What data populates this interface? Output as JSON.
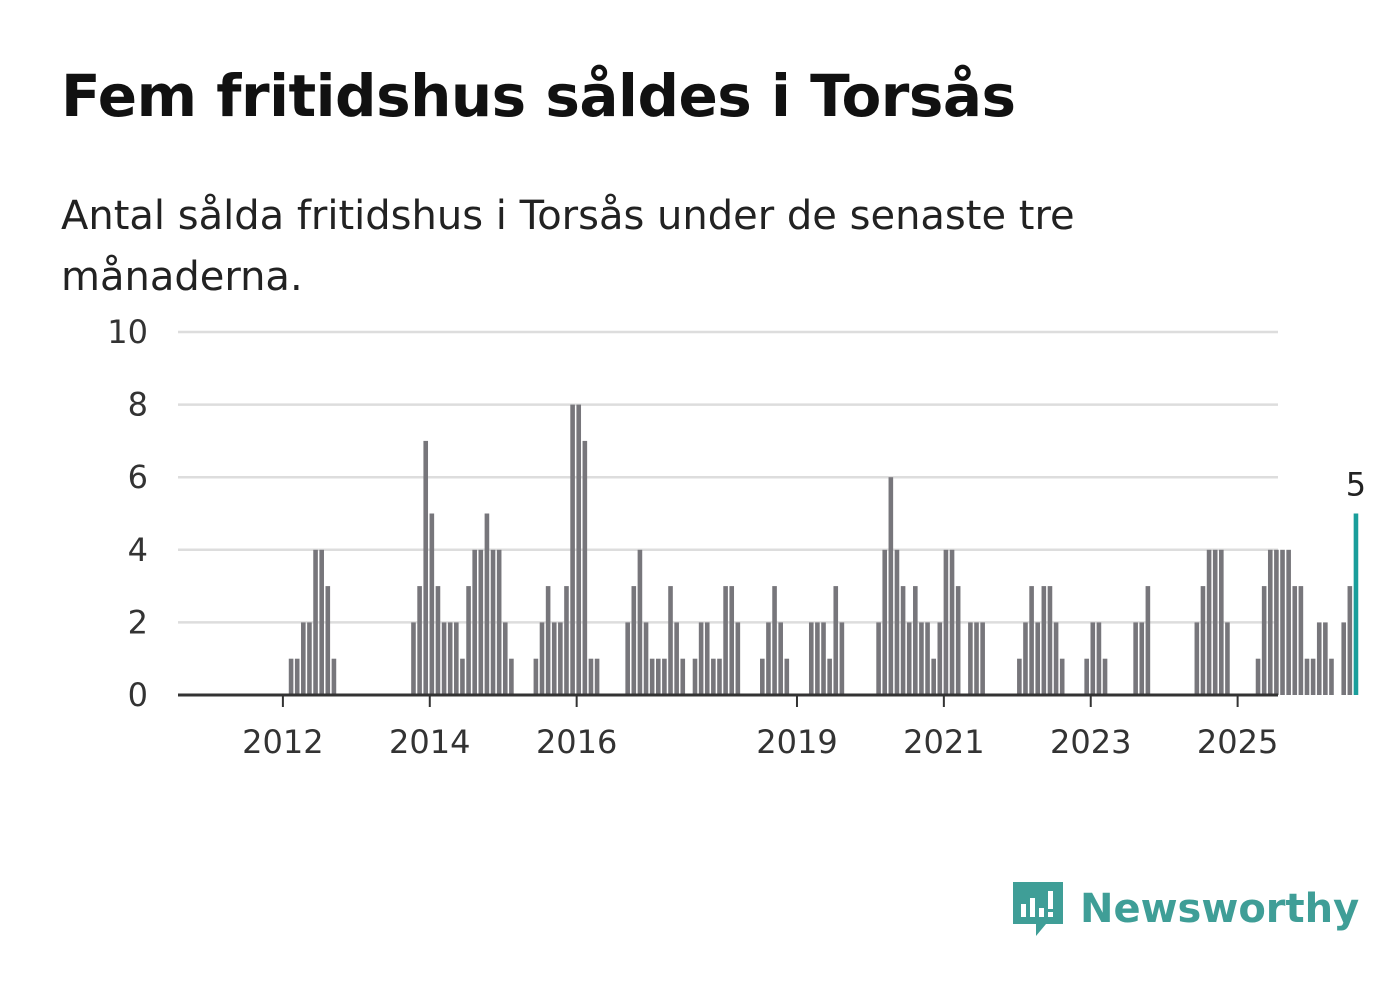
{
  "header": {
    "title": "Fem fritidshus såldes i Torsås",
    "subtitle": "Antal sålda fritidshus i Torsås under de senaste tre månaderna."
  },
  "brand": {
    "name": "Newsworthy",
    "color": "#3f9e97",
    "icon": "newsworthy-logo-icon"
  },
  "colors": {
    "bar": "#77767b",
    "highlight": "#1a9e9b",
    "grid": "#dddddd",
    "axis": "#333333"
  },
  "chart_data": {
    "type": "bar",
    "x_start": "2011-05",
    "y_ticks": [
      "0",
      "2",
      "4",
      "6",
      "8",
      "10"
    ],
    "ylim": [
      0,
      10
    ],
    "x_ticks": [
      {
        "label": "2012",
        "date": "2012-01"
      },
      {
        "label": "2014",
        "date": "2014-01"
      },
      {
        "label": "2016",
        "date": "2016-01"
      },
      {
        "label": "2019",
        "date": "2019-01"
      },
      {
        "label": "2021",
        "date": "2021-01"
      },
      {
        "label": "2023",
        "date": "2023-01"
      },
      {
        "label": "2025",
        "date": "2025-01"
      }
    ],
    "highlight_label": "5",
    "grid": true,
    "values": [
      0,
      0,
      0,
      0,
      0,
      0,
      0,
      0,
      0,
      1,
      1,
      2,
      2,
      4,
      4,
      3,
      1,
      0,
      0,
      0,
      0,
      0,
      0,
      0,
      0,
      0,
      0,
      0,
      0,
      2,
      3,
      7,
      5,
      3,
      2,
      2,
      2,
      1,
      3,
      4,
      4,
      5,
      4,
      4,
      2,
      1,
      0,
      0,
      0,
      1,
      2,
      3,
      2,
      2,
      3,
      8,
      8,
      7,
      1,
      1,
      0,
      0,
      0,
      0,
      2,
      3,
      4,
      2,
      1,
      1,
      1,
      3,
      2,
      1,
      0,
      1,
      2,
      2,
      1,
      1,
      3,
      3,
      2,
      0,
      0,
      0,
      1,
      2,
      3,
      2,
      1,
      0,
      0,
      0,
      2,
      2,
      2,
      1,
      3,
      2,
      0,
      0,
      0,
      0,
      0,
      2,
      4,
      6,
      4,
      3,
      2,
      3,
      2,
      2,
      1,
      2,
      4,
      4,
      3,
      0,
      2,
      2,
      2,
      0,
      0,
      0,
      0,
      0,
      1,
      2,
      3,
      2,
      3,
      3,
      2,
      1,
      0,
      0,
      0,
      1,
      2,
      2,
      1,
      0,
      0,
      0,
      0,
      2,
      2,
      3,
      0,
      0,
      0,
      0,
      0,
      0,
      0,
      2,
      3,
      4,
      4,
      4,
      2,
      0,
      0,
      0,
      0,
      1,
      3,
      4,
      4,
      4,
      4,
      3,
      3,
      1,
      1,
      2,
      2,
      1,
      0,
      2,
      3,
      5
    ]
  }
}
